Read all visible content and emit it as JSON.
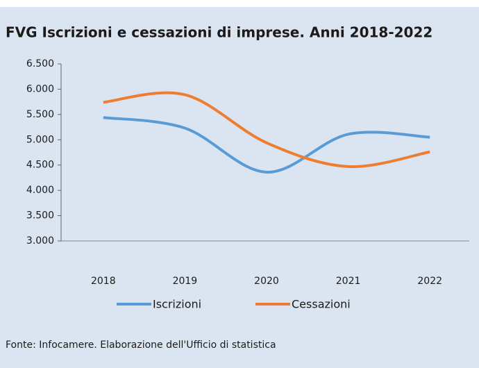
{
  "chart_data": {
    "type": "line",
    "title": "FVG Iscrizioni e cessazioni di imprese. Anni 2018-2022",
    "source": "Fonte: Infocamere.  Elaborazione dell'Ufficio di statistica",
    "categories": [
      "2018",
      "2019",
      "2020",
      "2021",
      "2022"
    ],
    "series": [
      {
        "name": "Iscrizioni",
        "color": "#5b9bd5",
        "values": [
          5440,
          5230,
          4360,
          5110,
          5050
        ]
      },
      {
        "name": "Cessazioni",
        "color": "#ed7d31",
        "values": [
          5740,
          5890,
          4940,
          4470,
          4760
        ]
      }
    ],
    "ylim": [
      3000,
      6500
    ],
    "yticks": [
      {
        "value": 3000,
        "label": "3.000"
      },
      {
        "value": 3500,
        "label": "3.500"
      },
      {
        "value": 4000,
        "label": "4.000"
      },
      {
        "value": 4500,
        "label": "4.500"
      },
      {
        "value": 5000,
        "label": "5.000"
      },
      {
        "value": 5500,
        "label": "5.500"
      },
      {
        "value": 6000,
        "label": "6.000"
      },
      {
        "value": 6500,
        "label": "6.500"
      }
    ],
    "smooth": true,
    "legend": "bottom"
  }
}
